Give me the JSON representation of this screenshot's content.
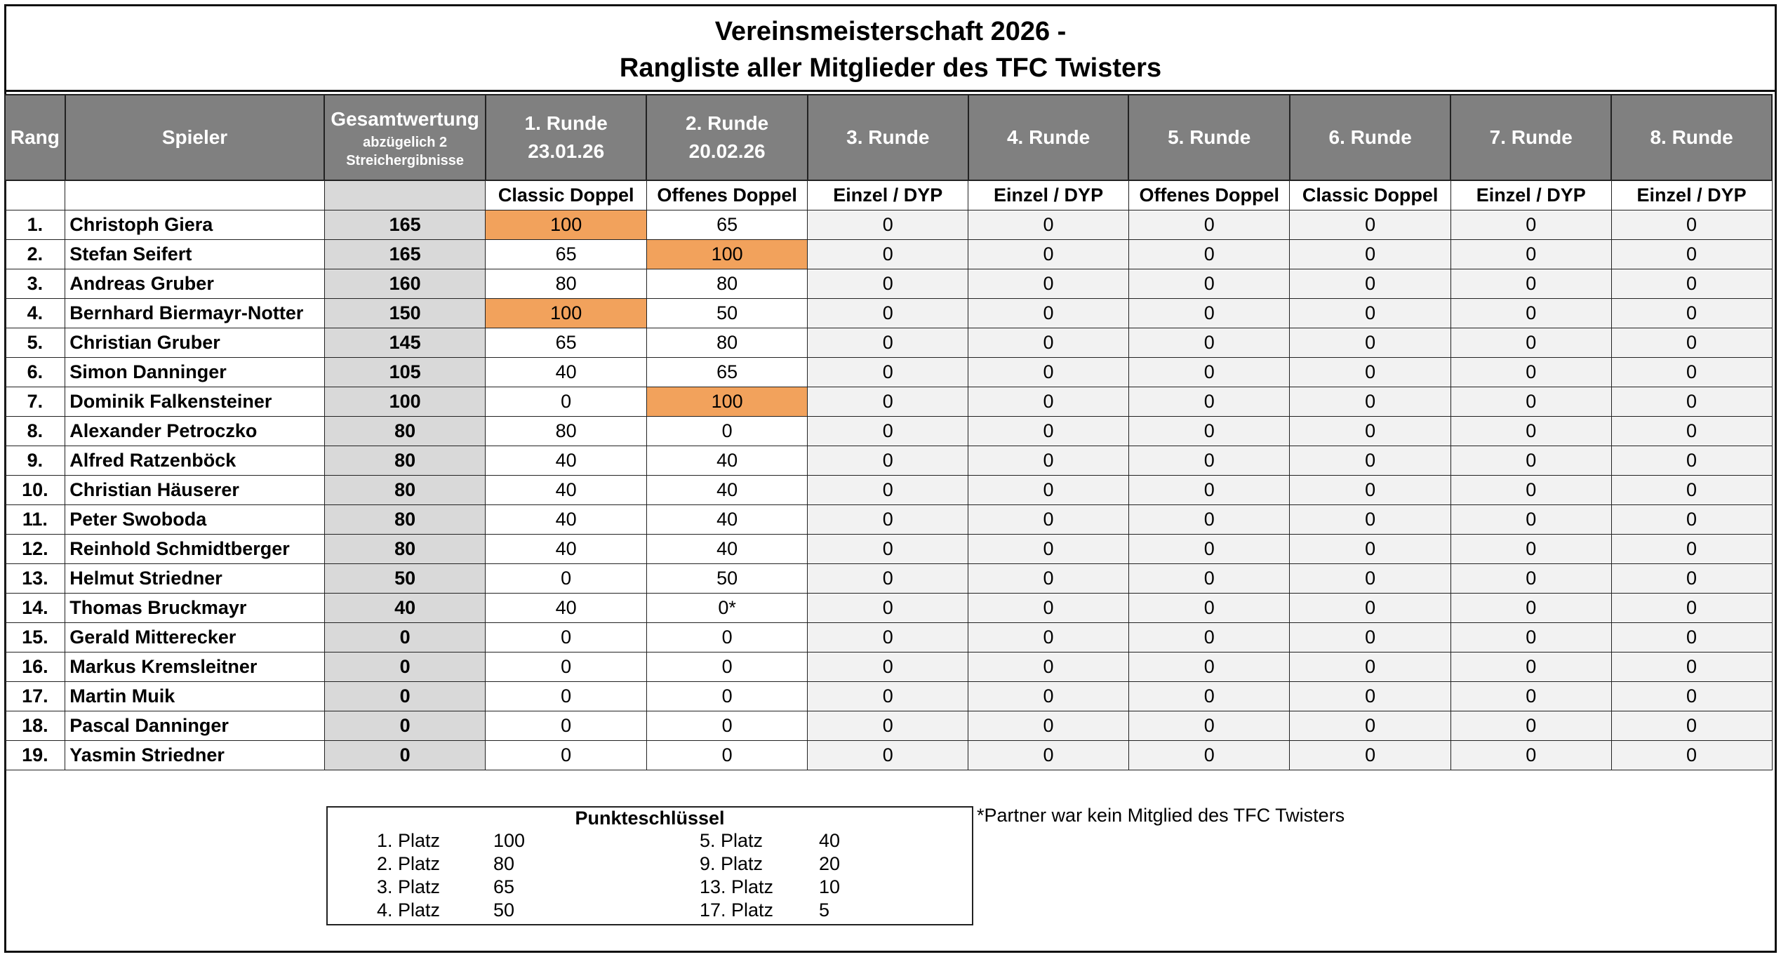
{
  "header": {
    "title_line1": "Vereinsmeisterschaft 2026 -",
    "title_line2": "Rangliste aller Mitglieder des TFC Twisters"
  },
  "table": {
    "columns": {
      "rank": "Rang",
      "player": "Spieler",
      "total": "Gesamtwertung",
      "total_note": "abzügelich 2 Streichergibnisse"
    },
    "rounds": [
      {
        "name": "1. Runde",
        "date": "23.01.26",
        "mode": "Classic Doppel"
      },
      {
        "name": "2. Runde",
        "date": "20.02.26",
        "mode": "Offenes Doppel"
      },
      {
        "name": "3. Runde",
        "mode": "Einzel / DYP"
      },
      {
        "name": "4. Runde",
        "mode": "Einzel / DYP"
      },
      {
        "name": "5. Runde",
        "mode": "Offenes Doppel"
      },
      {
        "name": "6. Runde",
        "mode": "Classic Doppel"
      },
      {
        "name": "7. Runde",
        "mode": "Einzel / DYP"
      },
      {
        "name": "8. Runde",
        "mode": "Einzel / DYP"
      }
    ],
    "highlight_color": "#f2a25c",
    "rows": [
      {
        "rank": "1.",
        "name": "Christoph Giera",
        "total": 165,
        "scores": [
          100,
          65,
          0,
          0,
          0,
          0,
          0,
          0
        ],
        "highlighted": [
          0
        ]
      },
      {
        "rank": "2.",
        "name": "Stefan Seifert",
        "total": 165,
        "scores": [
          65,
          100,
          0,
          0,
          0,
          0,
          0,
          0
        ],
        "highlighted": [
          1
        ]
      },
      {
        "rank": "3.",
        "name": "Andreas Gruber",
        "total": 160,
        "scores": [
          80,
          80,
          0,
          0,
          0,
          0,
          0,
          0
        ],
        "highlighted": []
      },
      {
        "rank": "4.",
        "name": "Bernhard Biermayr-Notter",
        "total": 150,
        "scores": [
          100,
          50,
          0,
          0,
          0,
          0,
          0,
          0
        ],
        "highlighted": [
          0
        ]
      },
      {
        "rank": "5.",
        "name": "Christian Gruber",
        "total": 145,
        "scores": [
          65,
          80,
          0,
          0,
          0,
          0,
          0,
          0
        ],
        "highlighted": []
      },
      {
        "rank": "6.",
        "name": "Simon Danninger",
        "total": 105,
        "scores": [
          40,
          65,
          0,
          0,
          0,
          0,
          0,
          0
        ],
        "highlighted": []
      },
      {
        "rank": "7.",
        "name": "Dominik Falkensteiner",
        "total": 100,
        "scores": [
          0,
          100,
          0,
          0,
          0,
          0,
          0,
          0
        ],
        "highlighted": [
          1
        ]
      },
      {
        "rank": "8.",
        "name": "Alexander Petroczko",
        "total": 80,
        "scores": [
          80,
          0,
          0,
          0,
          0,
          0,
          0,
          0
        ],
        "highlighted": []
      },
      {
        "rank": "9.",
        "name": "Alfred Ratzenböck",
        "total": 80,
        "scores": [
          40,
          40,
          0,
          0,
          0,
          0,
          0,
          0
        ],
        "highlighted": []
      },
      {
        "rank": "10.",
        "name": "Christian Häuserer",
        "total": 80,
        "scores": [
          40,
          40,
          0,
          0,
          0,
          0,
          0,
          0
        ],
        "highlighted": []
      },
      {
        "rank": "11.",
        "name": "Peter Swoboda",
        "total": 80,
        "scores": [
          40,
          40,
          0,
          0,
          0,
          0,
          0,
          0
        ],
        "highlighted": []
      },
      {
        "rank": "12.",
        "name": "Reinhold Schmidtberger",
        "total": 80,
        "scores": [
          40,
          40,
          0,
          0,
          0,
          0,
          0,
          0
        ],
        "highlighted": []
      },
      {
        "rank": "13.",
        "name": "Helmut Striedner",
        "total": 50,
        "scores": [
          0,
          50,
          0,
          0,
          0,
          0,
          0,
          0
        ],
        "highlighted": []
      },
      {
        "rank": "14.",
        "name": "Thomas Bruckmayr",
        "total": 40,
        "scores": [
          40,
          "0*",
          0,
          0,
          0,
          0,
          0,
          0
        ],
        "highlighted": []
      },
      {
        "rank": "15.",
        "name": "Gerald Mitterecker",
        "total": 0,
        "scores": [
          0,
          0,
          0,
          0,
          0,
          0,
          0,
          0
        ],
        "highlighted": []
      },
      {
        "rank": "16.",
        "name": "Markus Kremsleitner",
        "total": 0,
        "scores": [
          0,
          0,
          0,
          0,
          0,
          0,
          0,
          0
        ],
        "highlighted": []
      },
      {
        "rank": "17.",
        "name": "Martin Muik",
        "total": 0,
        "scores": [
          0,
          0,
          0,
          0,
          0,
          0,
          0,
          0
        ],
        "highlighted": []
      },
      {
        "rank": "18.",
        "name": "Pascal Danninger",
        "total": 0,
        "scores": [
          0,
          0,
          0,
          0,
          0,
          0,
          0,
          0
        ],
        "highlighted": []
      },
      {
        "rank": "19.",
        "name": "Yasmin Striedner",
        "total": 0,
        "scores": [
          0,
          0,
          0,
          0,
          0,
          0,
          0,
          0
        ],
        "highlighted": []
      }
    ]
  },
  "legend": {
    "title": "Punkteschlüssel",
    "items": [
      {
        "place": "1. Platz",
        "points": 100
      },
      {
        "place": "2. Platz",
        "points": 80
      },
      {
        "place": "3. Platz",
        "points": 65
      },
      {
        "place": "4. Platz",
        "points": 50
      },
      {
        "place": "5. Platz",
        "points": 40
      },
      {
        "place": "9. Platz",
        "points": 20
      },
      {
        "place": "13. Platz",
        "points": 10
      },
      {
        "place": "17. Platz",
        "points": 5
      }
    ]
  },
  "note": "*Partner war kein Mitglied des TFC Twisters"
}
